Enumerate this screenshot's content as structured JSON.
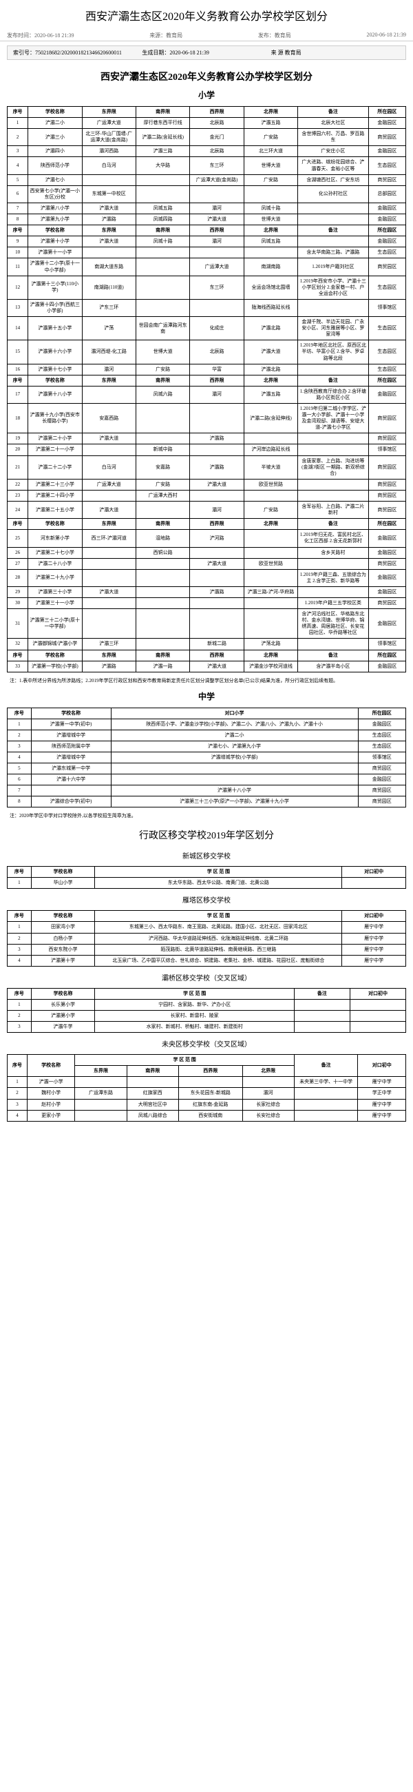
{
  "pageTitle": "西安浐灞生态区2020年义务教育公办学校学区划分",
  "meta": {
    "pubTime": "发布时间：2020-06-18 21:39",
    "source": "来源：教育局",
    "publisher": "发布：教育局",
    "right": "2020-06-18 21:39"
  },
  "indexBox": {
    "left": "索引号：750218682/2020001821346620600011",
    "center": "生成日期：2020-06-18 21:39",
    "right": "来 源  教育局"
  },
  "docTitle": "西安浐灞生态区2020年义务教育公办学校学区划分",
  "primaryHeaders": [
    "序号",
    "学校名称",
    "东界限",
    "南界限",
    "西界限",
    "北界限",
    "备注",
    "所在园区"
  ],
  "primaryRows": [
    [
      "1",
      "浐灞二小",
      "广运潭大道",
      "厚行巷东西平行线",
      "北辰路",
      "浐灞五路",
      "北辰大社区",
      "金融园区"
    ],
    [
      "2",
      "浐灞三小",
      "北三环-华山厂围墙-广运潭大道(金尚路)",
      "浐灞二路(含延长线)",
      "金光门",
      "广安路",
      "含世博园六村、万昌、罗百路东",
      "商贸园区"
    ],
    [
      "3",
      "浐灞四小",
      "灞河西路",
      "浐灞三路",
      "北辰路",
      "北三环大道",
      "广安庄小区",
      "金融园区"
    ],
    [
      "4",
      "陕西师范小学",
      "白马河",
      "大华路",
      "东三环",
      "世博大道",
      "广大进路、缤纷花园综合、浐灞春天、金裕小区等",
      "生态园区"
    ],
    [
      "5",
      "浐灞七小",
      "",
      "",
      "广运潭大道(金尚路)",
      "广安路",
      "含湖塘西社区、广安东坊",
      "商贸园区"
    ],
    [
      "6",
      "西安第七小学(浐灞一小东区)分校",
      "东城第一中校区",
      "",
      "",
      "",
      "化公孙村社区",
      "总部园区"
    ],
    [
      "7",
      "浐灞第八小学",
      "浐灞大道",
      "凤城五路",
      "灞河",
      "凤城十路",
      "",
      "金融园区"
    ],
    [
      "8",
      "浐灞第九小学",
      "浐灞路",
      "凤城四路",
      "浐灞大道",
      "世博大道",
      "",
      "金融园区"
    ],
    [
      "9",
      "浐灞第十小学",
      "浐灞大道",
      "凤城十路",
      "灞河",
      "凤城五路",
      "",
      "金融园区"
    ],
    [
      "10",
      "浐灞第十一小学",
      "",
      "",
      "",
      "",
      "含太华南路三路、浐灞路",
      "生态园区"
    ],
    [
      "11",
      "浐灞第十二小学(原十一中小学部)",
      "南湖大道东路",
      "",
      "广运潭大道",
      "南湖南路",
      "1.2019年户籍刘社区",
      "商贸园区"
    ],
    [
      "12",
      "浐灞第十三小学(110小学)",
      "南湖路(110道)",
      "",
      "东三环",
      "全运会场馆北围墙",
      "1.2019年西安市小学、浐灞十三小学区划分 2.金家巷一村、户全运会村小区",
      "生态园区"
    ],
    [
      "13",
      "浐灞第十四小学(西航三小学部)",
      "浐东三环",
      "",
      "",
      "陇海线西路延长线",
      "",
      "领事馆区"
    ],
    [
      "14",
      "浐灞第十五小学",
      "浐荡",
      "世园会南广运潭路河东南",
      "化成庄",
      "浐灞北路",
      "金湖千院、半边天花园、广永安小区、河东雅居等小区、罗家湾等",
      "生态园区"
    ],
    [
      "15",
      "浐灞第十六小学",
      "灞河西堤-化工路",
      "世博大道",
      "北辰路",
      "浐灞大道",
      "1.2019年地区北社区、原西区北半坊、华富小区 2.含华、罗卓路等北段",
      "生态园区"
    ],
    [
      "16",
      "浐灞第十七小学",
      "灞河",
      "广安路",
      "华富",
      "浐灞北路",
      "",
      "生态园区"
    ],
    [
      "17",
      "浐灞第十八小学",
      "",
      "凤城六路",
      "灞河",
      "浐灞五路",
      "1.含陕西教育厅综合办 2.含环塘路小区街区小区",
      "金融园区"
    ],
    [
      "18",
      "浐灞第十九小学(西安市长缨路小学)",
      "安嘉西路",
      "",
      "",
      "浐灞二路(含延伸线)",
      "1.2019年归第二城小学学区、浐灞一大小学部、浐灞十一小学及金湾观邸、湖语等、安堤大道-浐灞七小学区",
      "商贸园区"
    ],
    [
      "19",
      "浐灞第二十小学",
      "浐灞大道",
      "",
      "浐灞路",
      "",
      "",
      "商贸园区"
    ],
    [
      "20",
      "浐灞第二十一小学",
      "",
      "新城中路",
      "",
      "浐河岸边路延长线",
      "",
      "领事馆区"
    ],
    [
      "21",
      "浐灞二十二小学",
      "白马河",
      "安嘉路",
      "浐灞路",
      "半坡大道",
      "含唐家寨、上白路、沟进坊等(金湖3街区 一期路、新双桥综合)",
      "商贸园区"
    ],
    [
      "22",
      "浐灞第二十三小学",
      "广运潭大道",
      "广安路",
      "浐灞大道",
      "欧亚世贸路",
      "",
      "商贸园区"
    ],
    [
      "23",
      "浐灞第二十四小学",
      "",
      "广运潭大西村",
      "",
      "",
      "",
      "商贸园区"
    ],
    [
      "24",
      "浐灞第二十五小学",
      "浐灞大道",
      "",
      "灞河",
      "广安路",
      "含军谷阳、上白路、浐灞二片新村",
      "商贸园区"
    ],
    [
      "25",
      "河东新第小学",
      "西三环-浐灞河道",
      "湿地路",
      "浐河路",
      "",
      "1.2019年归无花、富民村北区、化工区西部 2.含无花新郭村",
      "金融园区"
    ],
    [
      "26",
      "浐灞第二十七小学",
      "",
      "西铜公路",
      "",
      "",
      "含乡关路村",
      "金融园区"
    ],
    [
      "27",
      "浐灞二十八小学",
      "",
      "",
      "浐灞大道",
      "欧亚世贸路",
      "",
      "商贸园区"
    ],
    [
      "28",
      "浐灞第二十九小学",
      "",
      "",
      "",
      "",
      "1.2019年户籍三森、五锁综合为主 2.含学正街、新华路等",
      "金融园区"
    ],
    [
      "29",
      "浐灞第三十小学",
      "浐灞大道",
      "",
      "浐灞路",
      "浐灞三路-浐河-华府路",
      "",
      "金融园区"
    ],
    [
      "30",
      "浐灞第三十一小学",
      "",
      "",
      "",
      "",
      "1.2019年户籍三五学校区类",
      "商贸园区"
    ],
    [
      "31",
      "浐灞第三十二小学(原十一中学部)",
      "",
      "",
      "",
      "",
      "含浐河沿线社区、华格路东北村、金水湾塘、世博华府、锦绣高速、周居路社区、长安花园社区、华乔路等社区",
      "金融园区"
    ],
    [
      "32",
      "浐灞御锦城/浐灞小学",
      "浐灞三环",
      "",
      "新城二路",
      "浐荡北路",
      "",
      "领事馆区"
    ],
    [
      "33",
      "浐灞第一学校(小学部)",
      "浐灞路",
      "浐灞一路",
      "浐灞大道",
      "浐灞金沙学校河道线",
      "含浐灞半岛小区",
      "金融园区"
    ]
  ],
  "primaryNote": "注：1.表中所述分界线为所涉路线；2.2019年学区行政区划和西安市教育局新定责任片区划分调整学区划分名单(已公示)结果为准，所分行政区划后续有题。",
  "middleHeaders": [
    "序号",
    "学校名称",
    "对口小学",
    "所在园区"
  ],
  "middleRows": [
    [
      "1",
      "浐灞第一中学(初中)",
      "陕西师范小学、浐灞金沙学校(小学部)、浐灞二小、浐灞八小、浐灞九小、浐灞十小",
      "金融园区"
    ],
    [
      "2",
      "浐灞增城中学",
      "浐灞二小",
      "生态园区"
    ],
    [
      "3",
      "陕西师范附属中学",
      "浐灞七小、浐灞第九小学",
      "生态园区"
    ],
    [
      "4",
      "浐灞增城中学",
      "浐灞增城学校(小学部)",
      "领事馆区"
    ],
    [
      "5",
      "浐灞东城第一中学",
      "",
      "商贸园区"
    ],
    [
      "6",
      "浐灞十六中学",
      "",
      "金融园区"
    ],
    [
      "7",
      "",
      "浐灞第十八小学",
      "商贸园区"
    ],
    [
      "8",
      "浐灞综合中学(初中)",
      "浐灞第三十三小学(原浐一小学部)、浐灞第十九小学",
      "商贸园区"
    ]
  ],
  "middleNote": "注：2020年学区中学对口学校除外,以各学校招生简章为准。",
  "transferTitle": "行政区移交学校2019年学区划分",
  "xinchengHeaders": [
    "序号",
    "学校名称",
    "学 区 范 围",
    "对口初中"
  ],
  "xinchengRows": [
    [
      "1",
      "华山小学",
      "东太华东路、西太华公路、南黄门道、北黄公路",
      ""
    ]
  ],
  "yantaHeaders": [
    "序号",
    "学校名称",
    "学 区 范 围",
    "对口初中"
  ],
  "yantaRows": [
    [
      "1",
      "田家湾小学",
      "东城第三小、西太华路东、南王宽路、北黄延路。建国小区、北社无区、田家湾北区",
      "雁宁中学"
    ],
    [
      "2",
      "白杨小学",
      "浐河西路、华太华道路延伸线西、化陇海路延伸线南、北黄二环路",
      "雁宁中学"
    ],
    [
      "3",
      "西安东院小学",
      "陌茂路街、北黄华道路延伸线、南黄继续路、西三继路",
      "雁宁中学"
    ],
    [
      "4",
      "浐灞第十学",
      "北玉泉广场、乙中国平仄综合、世礼综合、铜建路、老集社、金桥、城建路、花园社区、庞魁街综合",
      "雁宁中学"
    ]
  ],
  "baqiaoHeaders": [
    "序号",
    "学校名称",
    "学 区 范 围",
    "备注",
    "对口初中"
  ],
  "baqiaoRows": [
    [
      "1",
      "长乐第小学",
      "宁园村、含家路、新华、浐办小区",
      "",
      ""
    ],
    [
      "2",
      "浐灞第小学",
      "长家村、新雷村、陵家",
      "",
      ""
    ],
    [
      "3",
      "浐灞牛学",
      "水家村、新城村、桥魁村、塘建村、新建街村",
      "",
      ""
    ]
  ],
  "weiyangHeaders": [
    "序号",
    "学校名称",
    "东界限",
    "南界限",
    "西界限",
    "北界限",
    "备注",
    "对口初中"
  ],
  "weiyangRows": [
    [
      "1",
      "浐灞一小学",
      "",
      "",
      "",
      "",
      "未央第三中学、十一中学",
      "雁宁中学"
    ],
    [
      "2",
      "魏村小学",
      "广运潭东路",
      "红旗家西",
      "东头花园东-新城路",
      "灞河",
      "",
      "学正中学"
    ],
    [
      "3",
      "赵村小学",
      "",
      "大明宫社区中",
      "红旗东南-金延路",
      "长家社综合",
      "",
      "雁宁中学"
    ],
    [
      "4",
      "更家小学",
      "",
      "凤城八路综合",
      "西安街城南",
      "长安社综合",
      "",
      "雁宁中学"
    ]
  ]
}
